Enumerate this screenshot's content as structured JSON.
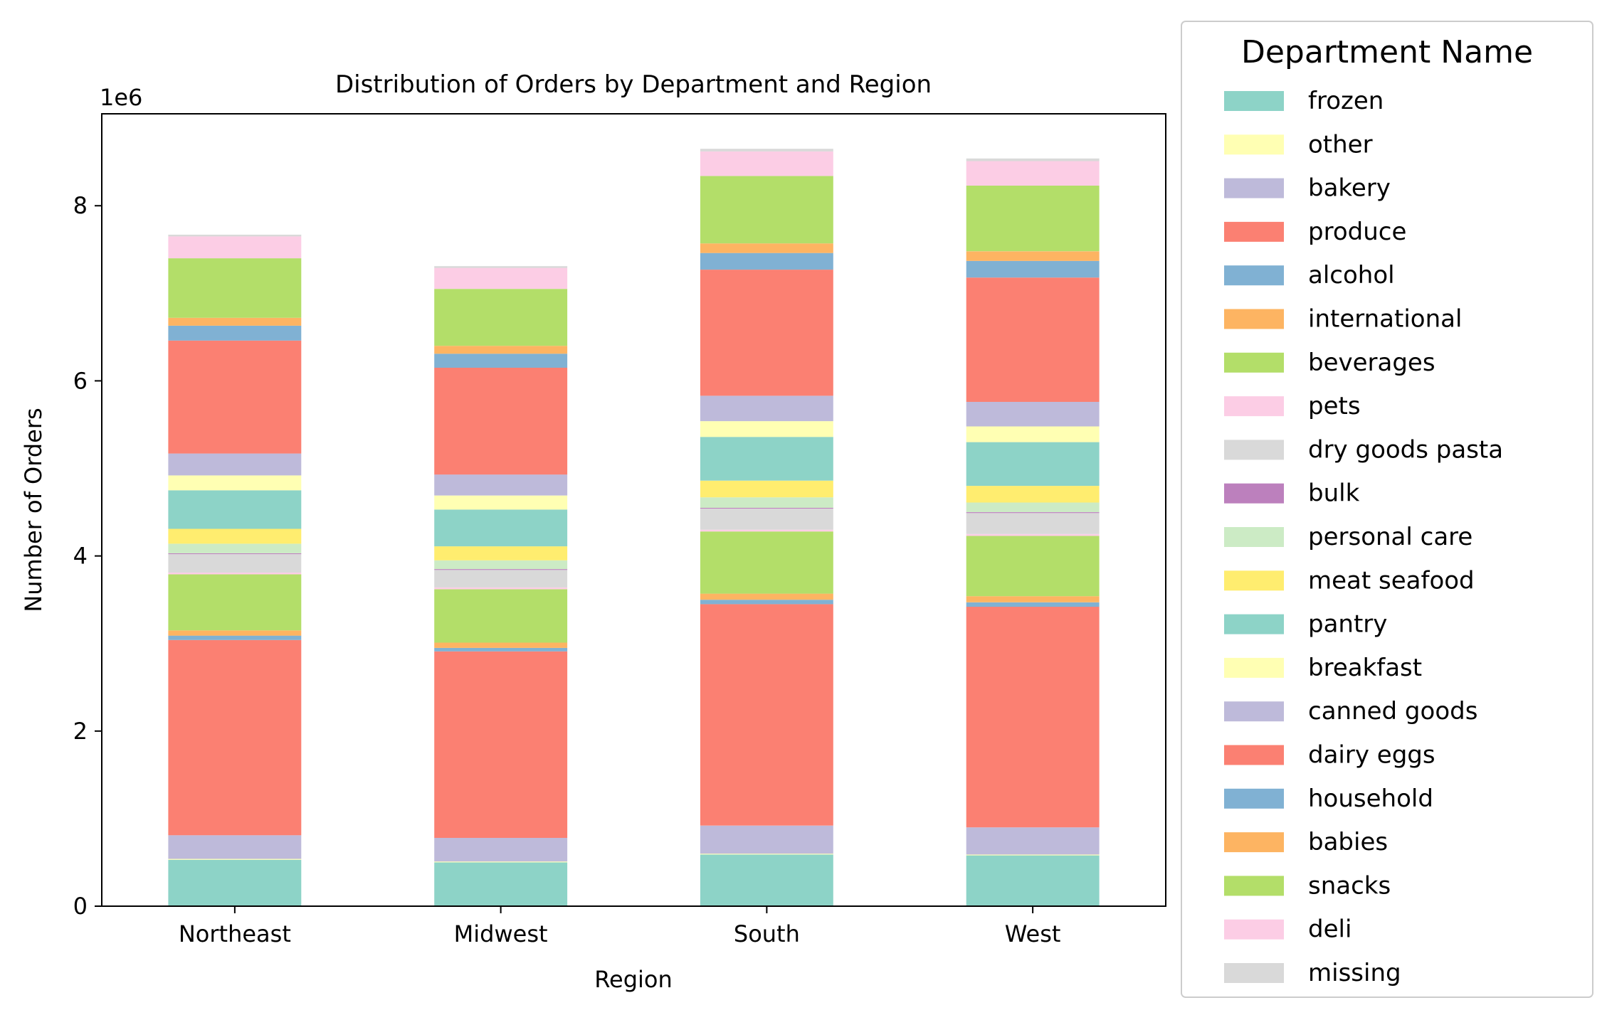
{
  "chart_data": {
    "type": "bar",
    "stacked": true,
    "title": "Distribution of Orders by Department and Region",
    "xlabel": "Region",
    "ylabel": "Number of Orders",
    "y_scale_label": "1e6",
    "ylim": [
      0,
      9.05
    ],
    "yticks": [
      "0",
      "2",
      "4",
      "6",
      "8"
    ],
    "ytick_values": [
      0,
      2,
      4,
      6,
      8
    ],
    "grid": false,
    "legend_title": "Department Name",
    "legend_position": "outside-right",
    "categories": [
      "Northeast",
      "Midwest",
      "South",
      "West"
    ],
    "series": [
      {
        "name": "frozen",
        "color": "#8dd3c7",
        "values": [
          0.53,
          0.5,
          0.59,
          0.58
        ]
      },
      {
        "name": "other",
        "color": "#ffffb3",
        "values": [
          0.01,
          0.01,
          0.01,
          0.01
        ]
      },
      {
        "name": "bakery",
        "color": "#bebada",
        "values": [
          0.27,
          0.27,
          0.32,
          0.31
        ]
      },
      {
        "name": "produce",
        "color": "#fb8072",
        "values": [
          2.23,
          2.13,
          2.53,
          2.52
        ]
      },
      {
        "name": "alcohol",
        "color": "#80b1d3",
        "values": [
          0.05,
          0.04,
          0.05,
          0.05
        ]
      },
      {
        "name": "international",
        "color": "#fdb462",
        "values": [
          0.06,
          0.06,
          0.07,
          0.07
        ]
      },
      {
        "name": "beverages",
        "color": "#b3de69",
        "values": [
          0.64,
          0.61,
          0.71,
          0.69
        ]
      },
      {
        "name": "pets",
        "color": "#fccde5",
        "values": [
          0.02,
          0.02,
          0.02,
          0.02
        ]
      },
      {
        "name": "dry goods pasta",
        "color": "#d9d9d9",
        "values": [
          0.21,
          0.2,
          0.24,
          0.24
        ]
      },
      {
        "name": "bulk",
        "color": "#bc80bd",
        "values": [
          0.01,
          0.01,
          0.01,
          0.01
        ]
      },
      {
        "name": "personal care",
        "color": "#ccebc5",
        "values": [
          0.11,
          0.1,
          0.12,
          0.11
        ]
      },
      {
        "name": "meat seafood",
        "color": "#ffed6f",
        "values": [
          0.17,
          0.16,
          0.19,
          0.19
        ]
      },
      {
        "name": "pantry",
        "color": "#8dd3c7",
        "values": [
          0.44,
          0.42,
          0.5,
          0.5
        ]
      },
      {
        "name": "breakfast",
        "color": "#ffffb3",
        "values": [
          0.17,
          0.16,
          0.18,
          0.18
        ]
      },
      {
        "name": "canned goods",
        "color": "#bebada",
        "values": [
          0.25,
          0.24,
          0.29,
          0.28
        ]
      },
      {
        "name": "dairy eggs",
        "color": "#fb8072",
        "values": [
          1.29,
          1.22,
          1.44,
          1.42
        ]
      },
      {
        "name": "household",
        "color": "#80b1d3",
        "values": [
          0.17,
          0.16,
          0.19,
          0.19
        ]
      },
      {
        "name": "babies",
        "color": "#fdb462",
        "values": [
          0.09,
          0.09,
          0.11,
          0.11
        ]
      },
      {
        "name": "snacks",
        "color": "#b3de69",
        "values": [
          0.68,
          0.65,
          0.77,
          0.75
        ]
      },
      {
        "name": "deli",
        "color": "#fccde5",
        "values": [
          0.25,
          0.24,
          0.28,
          0.28
        ]
      },
      {
        "name": "missing",
        "color": "#d9d9d9",
        "values": [
          0.02,
          0.02,
          0.03,
          0.03
        ]
      }
    ]
  }
}
